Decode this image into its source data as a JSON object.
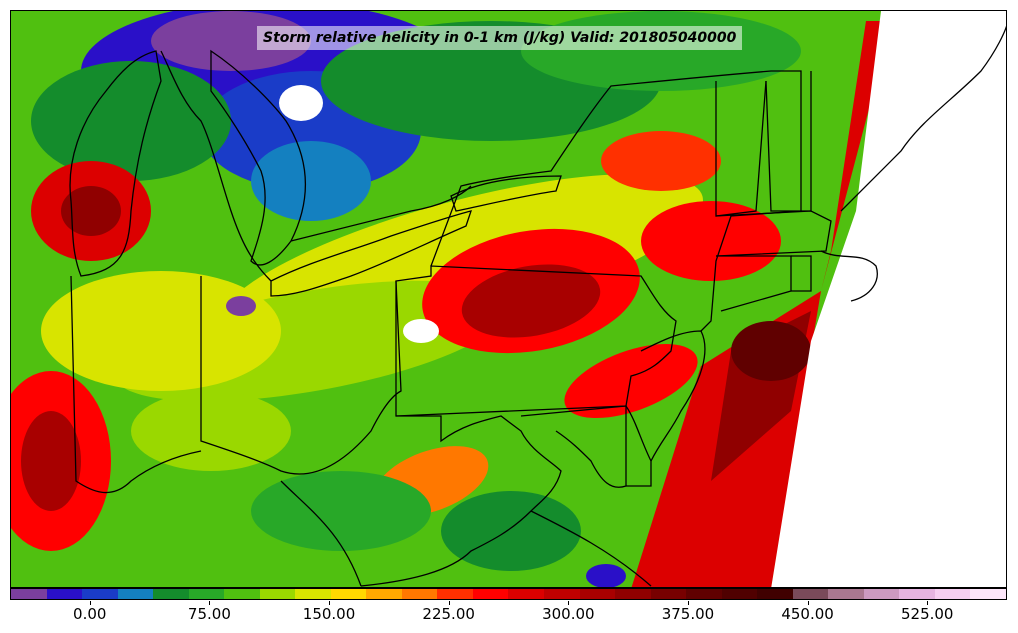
{
  "title": "Storm relative helicity in 0-1 km (J/kg) Valid: 201805040000",
  "colorbar": {
    "colors": [
      "#7b3f9e",
      "#2a10c8",
      "#1a3cc8",
      "#1480c0",
      "#148c2c",
      "#28a828",
      "#50c010",
      "#9ad800",
      "#d8e400",
      "#ffd800",
      "#ffa800",
      "#ff7800",
      "#ff3000",
      "#ff0000",
      "#dc0000",
      "#c00000",
      "#a80000",
      "#900000",
      "#780000",
      "#600000",
      "#500000",
      "#400000",
      "#7a4a5a",
      "#aa7890",
      "#cc9ac0",
      "#e6b4e0",
      "#f6cef0",
      "#fde6fa"
    ],
    "tick_labels": [
      "0.00",
      "75.00",
      "150.00",
      "225.00",
      "300.00",
      "375.00",
      "450.00",
      "525.00"
    ],
    "tick_values": [
      0,
      75,
      150,
      225,
      300,
      375,
      450,
      525
    ],
    "range": [
      -50,
      575
    ]
  },
  "icons": {
    "map": "weather-map-icon"
  }
}
